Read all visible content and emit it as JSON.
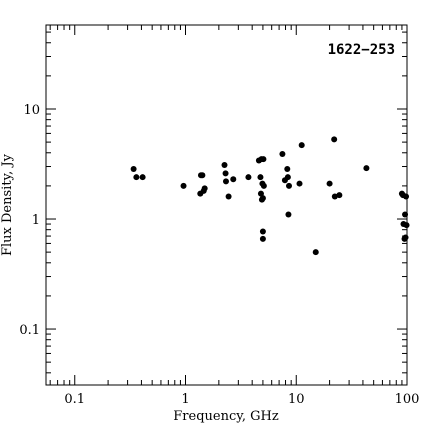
{
  "chart_data": {
    "type": "scatter",
    "title": "1622−253",
    "xlabel": "Frequency, GHz",
    "ylabel": "Flux Density, Jy",
    "xscale": "log",
    "yscale": "log",
    "xlim": [
      0.055,
      100
    ],
    "ylim": [
      0.031,
      58
    ],
    "grid": false,
    "xticks": [
      {
        "value": 0.1,
        "label": "0.1"
      },
      {
        "value": 1,
        "label": "1"
      },
      {
        "value": 10,
        "label": "10"
      },
      {
        "value": 100,
        "label": "100"
      }
    ],
    "yticks": [
      {
        "value": 0.1,
        "label": "0.1"
      },
      {
        "value": 1,
        "label": "1"
      },
      {
        "value": 10,
        "label": "10"
      }
    ],
    "points": [
      {
        "x": 0.34,
        "y": 2.85
      },
      {
        "x": 0.36,
        "y": 2.4
      },
      {
        "x": 0.41,
        "y": 2.4
      },
      {
        "x": 0.96,
        "y": 2.0
      },
      {
        "x": 1.36,
        "y": 1.7
      },
      {
        "x": 1.38,
        "y": 2.5
      },
      {
        "x": 1.42,
        "y": 2.5
      },
      {
        "x": 1.46,
        "y": 1.8
      },
      {
        "x": 1.49,
        "y": 1.9
      },
      {
        "x": 2.25,
        "y": 3.1
      },
      {
        "x": 2.3,
        "y": 2.6
      },
      {
        "x": 2.32,
        "y": 2.2
      },
      {
        "x": 2.45,
        "y": 1.6
      },
      {
        "x": 2.7,
        "y": 2.3
      },
      {
        "x": 3.7,
        "y": 2.4
      },
      {
        "x": 4.6,
        "y": 3.4
      },
      {
        "x": 4.75,
        "y": 2.4
      },
      {
        "x": 4.8,
        "y": 1.7
      },
      {
        "x": 4.85,
        "y": 3.5
      },
      {
        "x": 4.9,
        "y": 1.5
      },
      {
        "x": 4.95,
        "y": 2.1
      },
      {
        "x": 5.0,
        "y": 1.55
      },
      {
        "x": 5.0,
        "y": 0.77
      },
      {
        "x": 5.0,
        "y": 0.66
      },
      {
        "x": 5.05,
        "y": 3.5
      },
      {
        "x": 5.1,
        "y": 2.0
      },
      {
        "x": 7.5,
        "y": 3.9
      },
      {
        "x": 7.9,
        "y": 2.25
      },
      {
        "x": 8.3,
        "y": 2.85
      },
      {
        "x": 8.4,
        "y": 2.4
      },
      {
        "x": 8.5,
        "y": 1.1
      },
      {
        "x": 8.6,
        "y": 2.0
      },
      {
        "x": 10.7,
        "y": 2.1
      },
      {
        "x": 11.2,
        "y": 4.7
      },
      {
        "x": 15.0,
        "y": 0.5
      },
      {
        "x": 20.0,
        "y": 2.1
      },
      {
        "x": 22.0,
        "y": 5.3
      },
      {
        "x": 22.3,
        "y": 1.6
      },
      {
        "x": 24.5,
        "y": 1.65
      },
      {
        "x": 43.0,
        "y": 2.9
      },
      {
        "x": 90,
        "y": 1.7
      },
      {
        "x": 92,
        "y": 1.65
      },
      {
        "x": 93,
        "y": 0.9
      },
      {
        "x": 95,
        "y": 0.66
      },
      {
        "x": 96,
        "y": 1.1
      },
      {
        "x": 97,
        "y": 0.68
      },
      {
        "x": 98,
        "y": 1.6
      },
      {
        "x": 99,
        "y": 0.88
      }
    ]
  }
}
